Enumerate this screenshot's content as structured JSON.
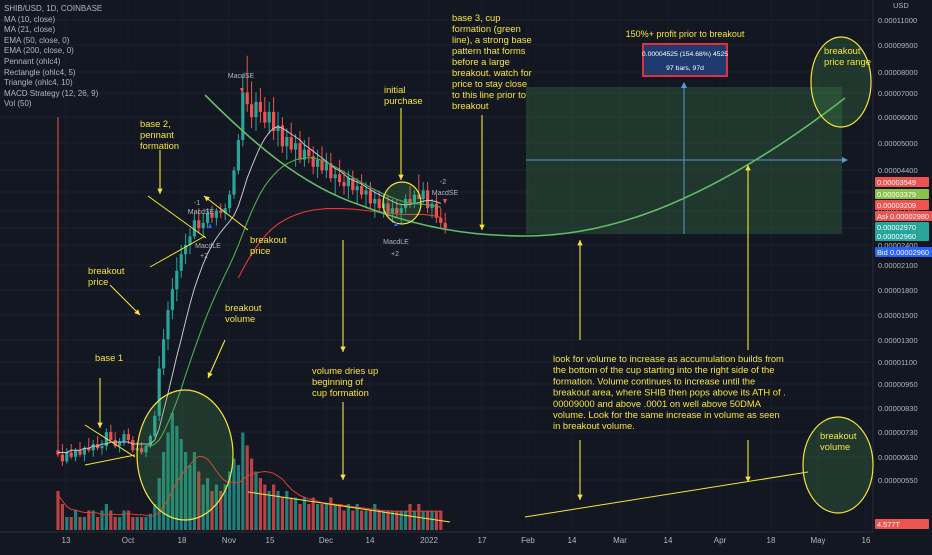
{
  "chart_data": {
    "type": "candlestick",
    "symbol": "SHIB/USD, 1D, COINBASE",
    "currency": "USD",
    "indicators": [
      "MA (10, close)",
      "MA (21, close)",
      "EMA (50, close, 0)",
      "EMA (200, close, 0)",
      "Pennant (ohlc4)",
      "Rectangle (ohlc4, 5)",
      "Triangle (ohlc4, 10)",
      "MACD Strategy (12, 26, 9)",
      "Vol (50)"
    ],
    "x_ticks": [
      "13",
      "Oct",
      "18",
      "Nov",
      "15",
      "Dec",
      "14",
      "2022",
      "17",
      "Feb",
      "14",
      "Mar",
      "14",
      "Apr",
      "18",
      "May",
      "16"
    ],
    "y_ticks": [
      "0.00011000",
      "0.00009500",
      "0.00008000",
      "0.00007000",
      "0.00006000",
      "0.00005000",
      "0.00004400",
      "0.00003760",
      "0.00003200",
      "0.00002700",
      "0.00002400",
      "0.00002100",
      "0.00001800",
      "0.00001500",
      "0.00001300",
      "0.00001100",
      "0.00000950",
      "0.00000830",
      "0.00000730",
      "0.00000630",
      "0.00000550"
    ],
    "price_labels": [
      {
        "text": "0.00003549",
        "color": "#ef5350"
      },
      {
        "text": "0.00003379",
        "color": "#8bc34a"
      },
      {
        "text": "0.00003209",
        "color": "#ef5350"
      },
      {
        "text": "Ask",
        "color": "#ef5350"
      },
      {
        "text": "0.00002980",
        "color": "#ef5350"
      },
      {
        "text": "0.00002970",
        "color": "#26a69a"
      },
      {
        "text": "0.00002960",
        "color": "#26a69a"
      },
      {
        "text": "Bid",
        "color": "#2962ff"
      },
      {
        "text": "0.00002960",
        "color": "#2962ff"
      },
      {
        "text": "4.577T",
        "color": "#ef5350"
      }
    ],
    "candles": [
      [
        7.5,
        60,
        7.2,
        7.3
      ],
      [
        7.3,
        7.8,
        6.8,
        7.0
      ],
      [
        7.0,
        7.6,
        6.9,
        7.4
      ],
      [
        7.4,
        7.8,
        7.1,
        7.2
      ],
      [
        7.2,
        7.6,
        7.0,
        7.5
      ],
      [
        7.5,
        7.9,
        7.2,
        7.3
      ],
      [
        7.3,
        7.7,
        7.0,
        7.6
      ],
      [
        7.6,
        8.1,
        7.4,
        7.5
      ],
      [
        7.5,
        8.0,
        7.2,
        7.8
      ],
      [
        7.8,
        8.2,
        7.5,
        7.6
      ],
      [
        7.6,
        8.0,
        7.3,
        7.7
      ],
      [
        7.7,
        8.6,
        7.5,
        8.4
      ],
      [
        8.4,
        8.8,
        7.9,
        8.0
      ],
      [
        8.0,
        8.4,
        7.6,
        7.7
      ],
      [
        7.7,
        8.1,
        7.4,
        7.9
      ],
      [
        7.9,
        8.5,
        7.7,
        8.3
      ],
      [
        8.3,
        8.6,
        7.8,
        8.0
      ],
      [
        8.0,
        8.2,
        7.4,
        7.5
      ],
      [
        7.5,
        7.9,
        7.2,
        7.6
      ],
      [
        7.6,
        7.9,
        7.3,
        7.4
      ],
      [
        7.4,
        7.8,
        7.2,
        7.7
      ],
      [
        7.7,
        8.3,
        7.6,
        8.2
      ],
      [
        8.2,
        9.6,
        8.1,
        9.3
      ],
      [
        9.3,
        13.5,
        9.0,
        12.5
      ],
      [
        12.5,
        16,
        12,
        15
      ],
      [
        15,
        19,
        14,
        18
      ],
      [
        18,
        22,
        17,
        20.5
      ],
      [
        20.5,
        25,
        19,
        23
      ],
      [
        23,
        27,
        22,
        25.5
      ],
      [
        25.5,
        29,
        24,
        27
      ],
      [
        27,
        30,
        25.5,
        28.5
      ],
      [
        28.5,
        33,
        28,
        31.5
      ],
      [
        31.5,
        34,
        29,
        30
      ],
      [
        30,
        33,
        28.5,
        31
      ],
      [
        31,
        34,
        30,
        33
      ],
      [
        33,
        34.5,
        31,
        32
      ],
      [
        32,
        34,
        30.5,
        33.5
      ],
      [
        33.5,
        35,
        32,
        33
      ],
      [
        33,
        35,
        31.5,
        34
      ],
      [
        34,
        38,
        33,
        37
      ],
      [
        37,
        44,
        36,
        43
      ],
      [
        43,
        54,
        42,
        52
      ],
      [
        52,
        78,
        50,
        70
      ],
      [
        70,
        88,
        62,
        65
      ],
      [
        65,
        75,
        56,
        60
      ],
      [
        60,
        70,
        55,
        66
      ],
      [
        66,
        72,
        58,
        62
      ],
      [
        62,
        68,
        56,
        58
      ],
      [
        58,
        66,
        54,
        62
      ],
      [
        62,
        68,
        52,
        55
      ],
      [
        55,
        62,
        50,
        57
      ],
      [
        57,
        60,
        48,
        50
      ],
      [
        50,
        56,
        46,
        53
      ],
      [
        53,
        58,
        48,
        49
      ],
      [
        49,
        54,
        44,
        51
      ],
      [
        51,
        55,
        45,
        46
      ],
      [
        46,
        52,
        44,
        49
      ],
      [
        49,
        53,
        45,
        47
      ],
      [
        47,
        50,
        42,
        44
      ],
      [
        44,
        49,
        41,
        46
      ],
      [
        46,
        50,
        42,
        43
      ],
      [
        43,
        48,
        41,
        45
      ],
      [
        45,
        48,
        40,
        41
      ],
      [
        41,
        44,
        37,
        42
      ],
      [
        42,
        46,
        39,
        40
      ],
      [
        40,
        43,
        37,
        39
      ],
      [
        39,
        43,
        36,
        41
      ],
      [
        41,
        43,
        37,
        38
      ],
      [
        38,
        41,
        35,
        39
      ],
      [
        39,
        42,
        36,
        37
      ],
      [
        37,
        40,
        34,
        38
      ],
      [
        38,
        40,
        34,
        35
      ],
      [
        35,
        38,
        32,
        36
      ],
      [
        36,
        38,
        33,
        34
      ],
      [
        34,
        37,
        32,
        35
      ],
      [
        35,
        37,
        32,
        33
      ],
      [
        33,
        36,
        31,
        34
      ],
      [
        34,
        36,
        32,
        33
      ],
      [
        33,
        35,
        31,
        34
      ],
      [
        34,
        37,
        33,
        36
      ],
      [
        36,
        39,
        34,
        35
      ],
      [
        35,
        38,
        34,
        37
      ],
      [
        37,
        42,
        36,
        36
      ],
      [
        36,
        40,
        35,
        38
      ],
      [
        38,
        40,
        33,
        34
      ],
      [
        34,
        36,
        32,
        35
      ],
      [
        35,
        37,
        31,
        32
      ],
      [
        32,
        34,
        30,
        31
      ],
      [
        31,
        33,
        29,
        30
      ]
    ],
    "ma10": [
      7.4,
      7.4,
      7.4,
      7.5,
      7.5,
      7.5,
      7.6,
      7.6,
      7.7,
      7.7,
      7.8,
      7.8,
      7.9,
      7.9,
      7.9,
      7.9,
      7.9,
      7.8,
      7.8,
      7.8,
      7.8,
      7.8,
      8.0,
      8.6,
      9.6,
      10.7,
      12,
      13.5,
      15,
      16.8,
      18.7,
      20.6,
      22.3,
      24,
      25.6,
      27,
      28.2,
      29.3,
      30.3,
      31.3,
      32.5,
      34.5,
      37.5,
      41,
      44,
      47,
      50,
      52.5,
      54.5,
      56,
      56.5,
      56,
      55,
      54,
      53,
      52,
      50.5,
      49.5,
      48.5,
      47.5,
      46.5,
      45.5,
      44.5,
      43.5,
      43,
      42,
      41,
      40.5,
      40,
      39.5,
      38.8,
      38.2,
      37.5,
      37,
      36.5,
      36,
      35.5,
      35,
      34.8,
      34.7,
      34.8,
      35,
      35.2,
      35.5,
      35.7,
      35.6,
      35.4,
      35
    ],
    "ma21": [
      null,
      null,
      null,
      null,
      null,
      null,
      null,
      null,
      null,
      null,
      null,
      null,
      null,
      null,
      null,
      null,
      null,
      null,
      null,
      null,
      7.7,
      7.7,
      7.8,
      8.0,
      8.4,
      8.9,
      9.5,
      10.2,
      11,
      12,
      13,
      14.1,
      15.2,
      16.4,
      17.6,
      18.8,
      20,
      21.2,
      22.5,
      23.8,
      25.3,
      27,
      29,
      31.2,
      33.3,
      35.3,
      37.3,
      39,
      40.5,
      41.8,
      43,
      44,
      44.8,
      45.4,
      46,
      46.3,
      46.5,
      46.6,
      46.5,
      46.2,
      45.8,
      45.2,
      44.6,
      44,
      43.3,
      42.6,
      41.9,
      41.2,
      40.5,
      39.9,
      39.3,
      38.7,
      38.1,
      37.6,
      37.1,
      36.7,
      36.3,
      35.9,
      35.6,
      35.3,
      35.1,
      35,
      34.9,
      34.8,
      34.7,
      34.6,
      34.4,
      34.2
    ],
    "ema50": [
      null,
      null,
      null,
      null,
      null,
      null,
      null,
      null,
      null,
      null,
      null,
      null,
      null,
      null,
      null,
      null,
      null,
      null,
      null,
      null,
      null,
      null,
      null,
      null,
      null,
      null,
      null,
      null,
      null,
      null,
      null,
      null,
      null,
      null,
      null,
      null,
      null,
      null,
      null,
      null,
      null,
      22,
      23.2,
      24.4,
      25.5,
      26.6,
      27.6,
      28.5,
      29.4,
      30.1,
      30.8,
      31.3,
      31.8,
      32.2,
      32.6,
      32.9,
      33.2,
      33.4,
      33.6,
      33.7,
      33.8,
      33.9,
      33.9,
      33.9,
      33.9,
      33.9,
      33.8,
      33.8,
      33.7,
      33.6,
      33.5,
      33.4,
      33.3,
      33.2,
      33.1,
      33,
      32.9,
      32.8,
      32.7,
      32.7,
      32.7,
      32.7,
      32.7,
      32.7,
      32.6,
      32.5,
      32.3,
      32.1
    ],
    "volume": [
      6,
      4,
      2,
      2,
      3,
      2,
      2,
      3,
      3,
      2,
      3,
      4,
      3,
      2,
      2,
      3,
      3,
      2,
      2,
      2,
      2,
      2.5,
      4,
      8,
      12,
      15,
      18,
      16,
      14,
      12,
      10,
      12,
      9,
      7,
      8,
      6,
      7,
      6,
      7,
      9,
      11,
      10,
      15,
      13,
      11,
      9,
      8,
      7,
      6,
      7,
      6,
      5,
      6,
      5,
      5,
      4,
      5,
      4,
      5,
      4,
      4,
      4,
      5,
      4,
      4,
      3,
      4,
      3,
      4,
      3,
      3,
      3,
      4,
      3,
      3,
      3,
      3,
      3,
      3,
      3,
      4,
      3,
      4,
      3,
      3,
      3,
      3,
      3
    ],
    "projection": {
      "label": "0.00004525 (154.68%) 4525",
      "bars": "97 bars, 97d",
      "caption": "150%+ profit prior to breakout"
    },
    "markers": [
      "MacdSE",
      "-1",
      "MacdSE",
      "MacdLE",
      "+2",
      "MacdLE",
      "+2",
      "-2",
      "MacdSE"
    ]
  },
  "annotations": {
    "base1": "base 1",
    "breakout_price_left": "breakout\nprice",
    "base2": "base 2,\npennant\nformation",
    "breakout_price_mid": "breakout\nprice",
    "breakout_volume_left": "breakout\nvolume",
    "volume_dries": "volume dries up\nbeginning of\ncup formation",
    "initial_purchase": "initial\npurchase",
    "base3": "base 3, cup\nformation (green\nline), a strong base\npattern that forms\nbefore a large\nbreakout. watch for\nprice to stay close\nto this line prior to\nbreakout",
    "breakout_price_range": "breakout\nprice range",
    "volume_note": "look for volume to increase as accumulation builds from\nthe bottom of the cup starting into the right side of the\nformation. Volume continues to increase until the\nbreakout area, where SHIB then pops above its ATH of .\n00009000 and above .0001 on well above 50DMA\nvolume. Look for the same increase in volume as seen\nin breakout volume.",
    "breakout_volume_right": "breakout\nvolume"
  }
}
